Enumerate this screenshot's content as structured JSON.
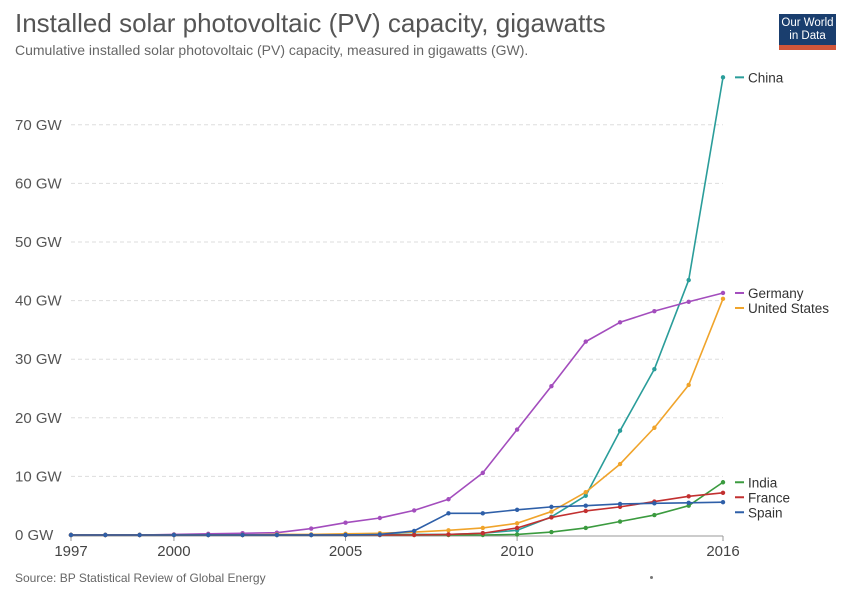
{
  "header": {
    "title": "Installed solar photovoltaic (PV) capacity, gigawatts",
    "subtitle": "Cumulative installed solar photovoltaic (PV) capacity, measured in gigawatts (GW).",
    "logo_line1": "Our World",
    "logo_line2": "in Data"
  },
  "footer": {
    "source": "Source: BP Statistical Review of Global Energy"
  },
  "chart_data": {
    "type": "line",
    "title": "Installed solar photovoltaic (PV) capacity, gigawatts",
    "subtitle": "Cumulative installed solar photovoltaic (PV) capacity, measured in gigawatts (GW).",
    "x": [
      1997,
      1998,
      1999,
      2000,
      2001,
      2002,
      2003,
      2004,
      2005,
      2006,
      2007,
      2008,
      2009,
      2010,
      2011,
      2012,
      2013,
      2014,
      2015,
      2016
    ],
    "xlim": [
      1997,
      2016
    ],
    "ylim": [
      0,
      78
    ],
    "xticks": [
      "1997",
      "2000",
      "2005",
      "2010",
      "2016"
    ],
    "yticks": [
      "0 GW",
      "10 GW",
      "20 GW",
      "30 GW",
      "40 GW",
      "50 GW",
      "60 GW",
      "70 GW"
    ],
    "grid": "horizontal dashed",
    "legend": "right, at line ends",
    "series": [
      {
        "name": "China",
        "color": "#2a9d9a",
        "values": [
          0,
          0,
          0,
          0,
          0,
          0,
          0,
          0,
          0.1,
          0.1,
          0.1,
          0.1,
          0.3,
          0.8,
          3.1,
          6.7,
          17.8,
          28.3,
          43.5,
          78.1
        ]
      },
      {
        "name": "Germany",
        "color": "#a34dbd",
        "values": [
          0,
          0,
          0,
          0.1,
          0.2,
          0.3,
          0.4,
          1.1,
          2.1,
          2.9,
          4.2,
          6.1,
          10.6,
          18.0,
          25.4,
          33.0,
          36.3,
          38.2,
          39.8,
          41.3
        ]
      },
      {
        "name": "United States",
        "color": "#f0a42b",
        "values": [
          0,
          0,
          0,
          0,
          0,
          0,
          0.1,
          0.1,
          0.2,
          0.3,
          0.5,
          0.8,
          1.2,
          2.0,
          4.0,
          7.3,
          12.1,
          18.3,
          25.6,
          40.3
        ]
      },
      {
        "name": "India",
        "color": "#3b9b3f",
        "values": [
          0,
          0,
          0,
          0,
          0,
          0,
          0,
          0,
          0,
          0,
          0,
          0,
          0,
          0.1,
          0.5,
          1.2,
          2.3,
          3.4,
          5.0,
          9.0
        ]
      },
      {
        "name": "France",
        "color": "#c23030",
        "values": [
          0,
          0,
          0,
          0,
          0,
          0,
          0,
          0,
          0,
          0,
          0,
          0.1,
          0.3,
          1.2,
          3.0,
          4.1,
          4.8,
          5.7,
          6.6,
          7.2
        ]
      },
      {
        "name": "Spain",
        "color": "#2e5fa8",
        "values": [
          0,
          0,
          0,
          0,
          0,
          0,
          0,
          0,
          0,
          0.1,
          0.7,
          3.7,
          3.7,
          4.3,
          4.8,
          5.0,
          5.3,
          5.4,
          5.5,
          5.6
        ]
      }
    ]
  }
}
